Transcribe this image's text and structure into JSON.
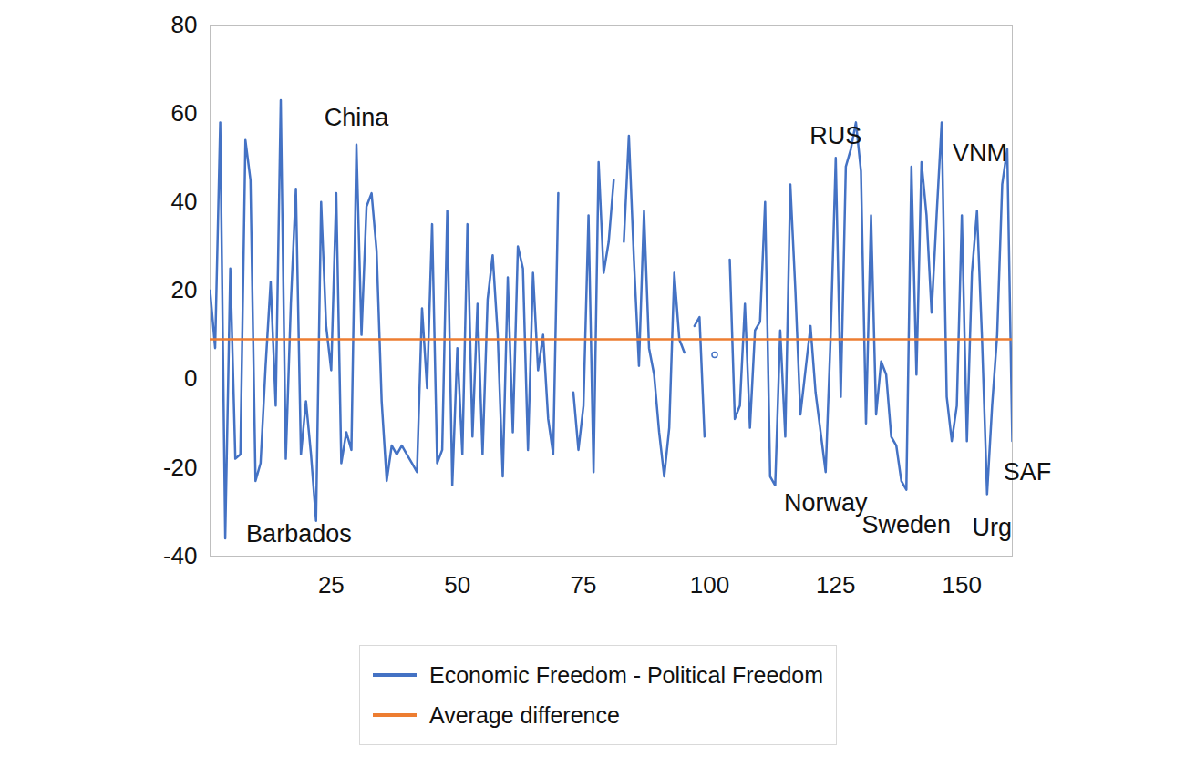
{
  "chart_data": {
    "type": "line",
    "x": [
      1,
      2,
      3,
      4,
      5,
      6,
      7,
      8,
      9,
      10,
      11,
      12,
      13,
      14,
      15,
      16,
      17,
      18,
      19,
      20,
      21,
      22,
      23,
      24,
      25,
      26,
      27,
      28,
      29,
      30,
      31,
      32,
      33,
      34,
      35,
      36,
      37,
      38,
      39,
      40,
      41,
      42,
      43,
      44,
      45,
      46,
      47,
      48,
      49,
      50,
      51,
      52,
      53,
      54,
      55,
      56,
      57,
      58,
      59,
      60,
      61,
      62,
      63,
      64,
      65,
      66,
      67,
      68,
      69,
      70,
      71,
      72,
      73,
      74,
      75,
      76,
      77,
      78,
      79,
      80,
      81,
      82,
      83,
      84,
      85,
      86,
      87,
      88,
      89,
      90,
      91,
      92,
      93,
      94,
      95,
      96,
      97,
      98,
      99,
      100,
      101,
      102,
      103,
      104,
      105,
      106,
      107,
      108,
      109,
      110,
      111,
      112,
      113,
      114,
      115,
      116,
      117,
      118,
      119,
      120,
      121,
      122,
      123,
      124,
      125,
      126,
      127,
      128,
      129,
      130,
      131,
      132,
      133,
      134,
      135,
      136,
      137,
      138,
      139,
      140,
      141,
      142,
      143,
      144,
      145,
      146,
      147,
      148,
      149,
      150,
      151,
      152,
      153,
      154,
      155,
      156,
      157,
      158,
      159,
      160
    ],
    "series": [
      {
        "name": "Economic Freedom - Political Freedom",
        "color": "#4472c4",
        "values": [
          20,
          7,
          58,
          -36,
          25,
          -18,
          -17,
          54,
          45,
          -23,
          -19,
          3,
          22,
          -6,
          63,
          -18,
          17,
          43,
          -17,
          -5,
          -17,
          -32,
          40,
          12,
          2,
          42,
          -19,
          -12,
          -16,
          53,
          10,
          39,
          42,
          29,
          -5,
          -23,
          -15,
          -17,
          -15,
          -17,
          -19,
          -21,
          16,
          -2,
          35,
          -19,
          -16,
          38,
          -24,
          7,
          -17,
          35,
          -13,
          17,
          -17,
          18,
          28,
          10,
          -22,
          23,
          -12,
          30,
          25,
          -16,
          24,
          2,
          10,
          -9,
          -17,
          42,
          null,
          null,
          -3,
          -16,
          -6,
          37,
          -21,
          49,
          24,
          31,
          45,
          null,
          31,
          55,
          27,
          3,
          38,
          7,
          1,
          -12,
          -22,
          -11,
          24,
          9,
          6,
          null,
          12,
          14,
          -13,
          null,
          5.5,
          null,
          null,
          27,
          -9,
          -6,
          17,
          -11,
          11,
          13,
          40,
          -22,
          -24,
          11,
          -13,
          44,
          20,
          -8,
          2,
          12,
          -3,
          -12,
          -21,
          10,
          50,
          -4,
          48,
          52,
          58,
          47,
          -10,
          37,
          -8,
          4,
          1,
          -13,
          -15,
          -23,
          -25,
          48,
          1,
          49,
          37,
          15,
          37,
          58,
          -4,
          -14,
          -6,
          37,
          -14,
          24,
          38,
          9,
          -26,
          -6,
          10,
          44,
          52,
          -14
        ]
      },
      {
        "name": "Average difference",
        "color": "#ed7d31",
        "values": [
          9,
          9,
          9,
          9,
          9,
          9,
          9,
          9,
          9,
          9,
          9,
          9,
          9,
          9,
          9,
          9,
          9,
          9,
          9,
          9,
          9,
          9,
          9,
          9,
          9,
          9,
          9,
          9,
          9,
          9,
          9,
          9,
          9,
          9,
          9,
          9,
          9,
          9,
          9,
          9,
          9,
          9,
          9,
          9,
          9,
          9,
          9,
          9,
          9,
          9,
          9,
          9,
          9,
          9,
          9,
          9,
          9,
          9,
          9,
          9,
          9,
          9,
          9,
          9,
          9,
          9,
          9,
          9,
          9,
          9,
          9,
          9,
          9,
          9,
          9,
          9,
          9,
          9,
          9,
          9,
          9,
          9,
          9,
          9,
          9,
          9,
          9,
          9,
          9,
          9,
          9,
          9,
          9,
          9,
          9,
          9,
          9,
          9,
          9,
          9,
          9,
          9,
          9,
          9,
          9,
          9,
          9,
          9,
          9,
          9,
          9,
          9,
          9,
          9,
          9,
          9,
          9,
          9,
          9,
          9,
          9,
          9,
          9,
          9,
          9,
          9,
          9,
          9,
          9,
          9,
          9,
          9,
          9,
          9,
          9,
          9,
          9,
          9,
          9,
          9,
          9,
          9,
          9,
          9,
          9,
          9,
          9,
          9,
          9,
          9,
          9,
          9,
          9,
          9,
          9,
          9,
          9,
          9,
          9,
          9
        ]
      }
    ],
    "annotations": [
      {
        "text": "China",
        "x": 30,
        "y": 59
      },
      {
        "text": "Barbados",
        "x": 18.6,
        "y": -35
      },
      {
        "text": "RUS",
        "x": 125,
        "y": 55
      },
      {
        "text": "VNM",
        "x": 153.6,
        "y": 51
      },
      {
        "text": "Norway",
        "x": 123,
        "y": -28
      },
      {
        "text": "Sweden",
        "x": 139,
        "y": -33
      },
      {
        "text": "Urg",
        "x": 156,
        "y": -33.5
      },
      {
        "text": "SAF",
        "x": 163,
        "y": -21
      }
    ],
    "xlim": [
      1,
      160
    ],
    "xticks": [
      25,
      50,
      75,
      100,
      125,
      150
    ],
    "ylim": [
      -40,
      80
    ],
    "yticks": [
      -40,
      -20,
      0,
      20,
      40,
      60,
      80
    ],
    "legend": "bottom",
    "grid": false
  }
}
